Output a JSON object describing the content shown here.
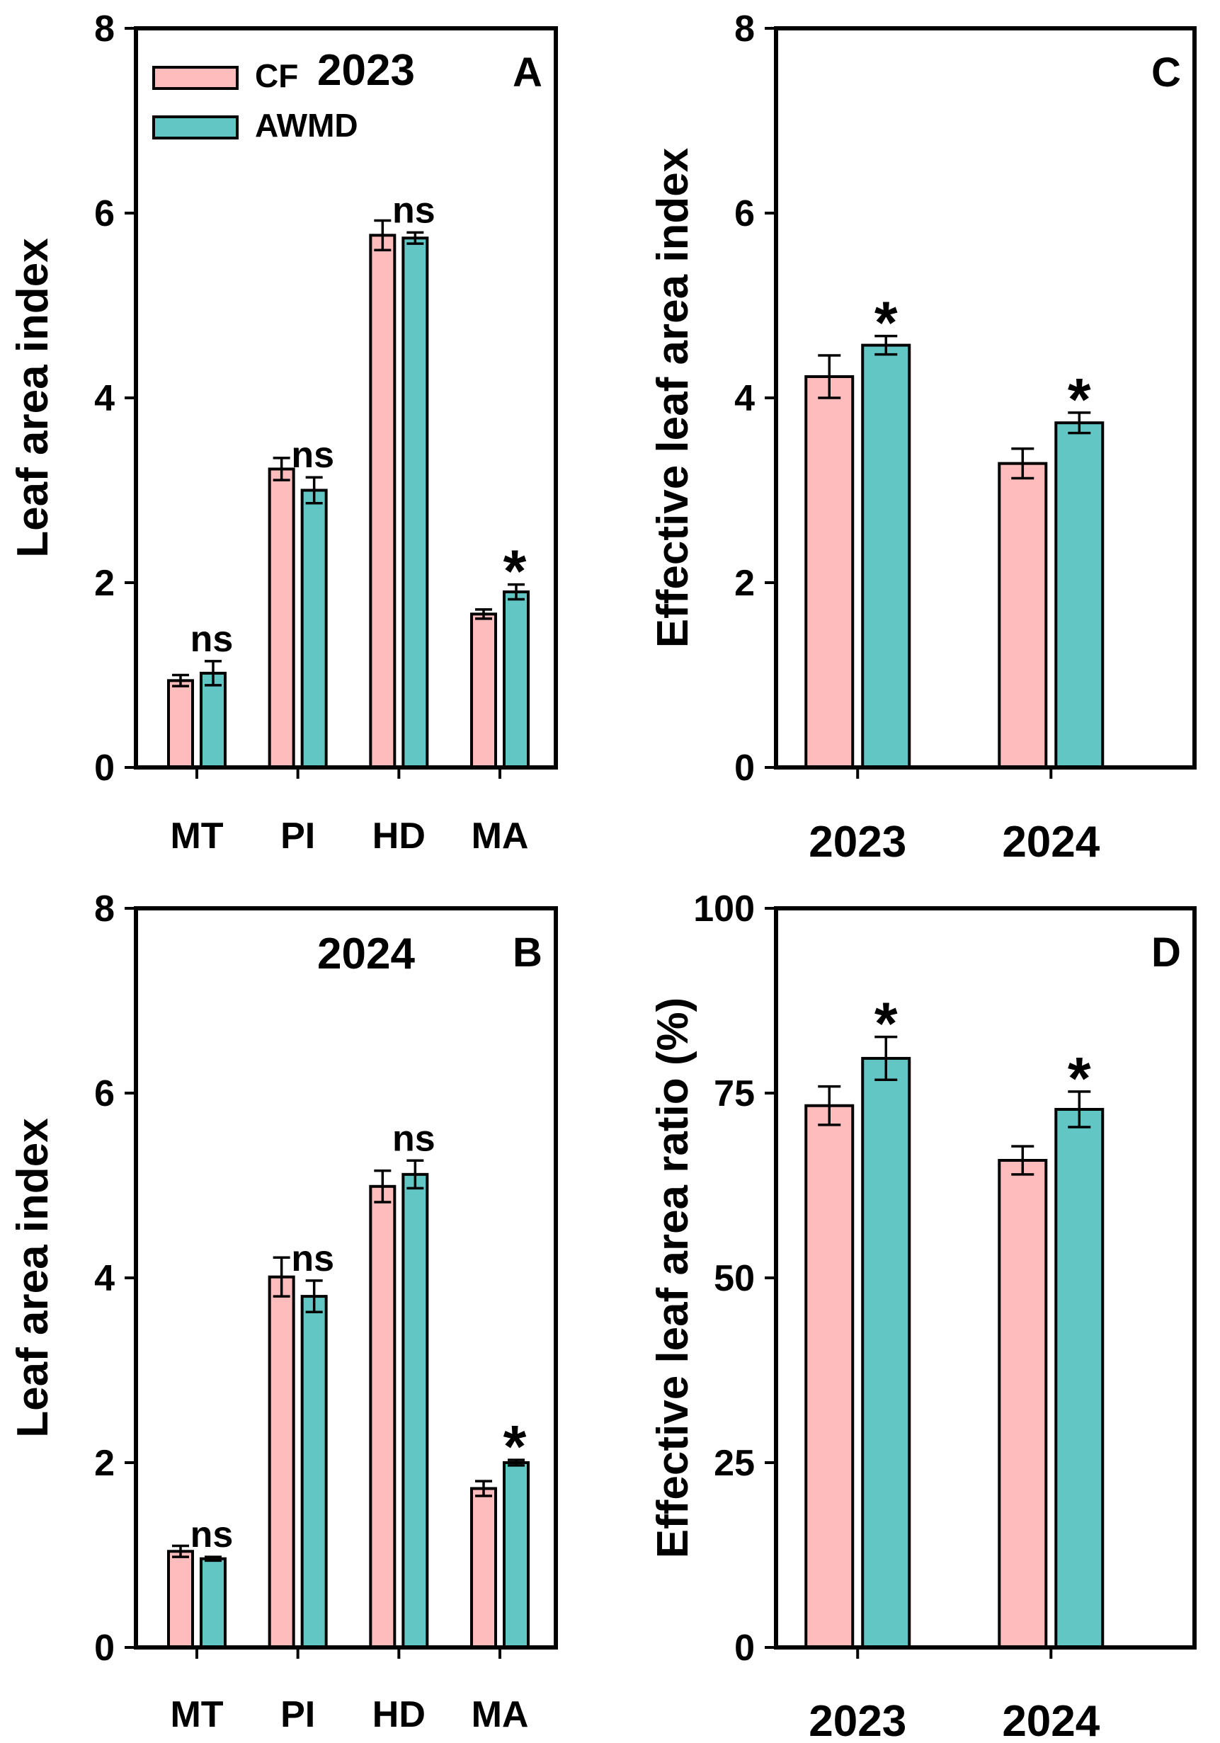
{
  "colors": {
    "cf": "#ffbcbc",
    "awmd": "#62c7c4",
    "stroke": "#000000"
  },
  "legend": [
    {
      "key": "cf",
      "label": "CF"
    },
    {
      "key": "awmd",
      "label": "AWMD"
    }
  ],
  "chart_data": [
    {
      "id": "A",
      "type": "bar",
      "panel_label": "A",
      "year_label": "2023",
      "ylabel": "Leaf area index",
      "ylim": [
        0,
        8
      ],
      "yticks": [
        0,
        2,
        4,
        6,
        8
      ],
      "categories": [
        "MT",
        "PI",
        "HD",
        "MA"
      ],
      "series": [
        {
          "name": "CF",
          "values": [
            0.94,
            3.23,
            5.76,
            1.66
          ],
          "errors": [
            0.06,
            0.12,
            0.16,
            0.05
          ]
        },
        {
          "name": "AWMD",
          "values": [
            1.02,
            3.0,
            5.73,
            1.9
          ],
          "errors": [
            0.13,
            0.14,
            0.06,
            0.08
          ]
        }
      ],
      "significance": [
        "ns",
        "ns",
        "ns",
        "*"
      ],
      "legend": true
    },
    {
      "id": "B",
      "type": "bar",
      "panel_label": "B",
      "year_label": "2024",
      "ylabel": "Leaf area index",
      "ylim": [
        0,
        8
      ],
      "yticks": [
        0,
        2,
        4,
        6,
        8
      ],
      "categories": [
        "MT",
        "PI",
        "HD",
        "MA"
      ],
      "series": [
        {
          "name": "CF",
          "values": [
            1.04,
            4.01,
            4.99,
            1.72
          ],
          "errors": [
            0.06,
            0.21,
            0.17,
            0.08
          ]
        },
        {
          "name": "AWMD",
          "values": [
            0.96,
            3.8,
            5.12,
            2.0
          ],
          "errors": [
            0.02,
            0.17,
            0.15,
            0.03
          ]
        }
      ],
      "significance": [
        "ns",
        "ns",
        "ns",
        "*"
      ],
      "legend": false
    },
    {
      "id": "C",
      "type": "bar",
      "panel_label": "C",
      "year_label": "",
      "ylabel": "Effective leaf area index",
      "ylim": [
        0,
        8
      ],
      "yticks": [
        0,
        2,
        4,
        6,
        8
      ],
      "categories": [
        "2023",
        "2024"
      ],
      "series": [
        {
          "name": "CF",
          "values": [
            4.23,
            3.29
          ],
          "errors": [
            0.23,
            0.16
          ]
        },
        {
          "name": "AWMD",
          "values": [
            4.57,
            3.73
          ],
          "errors": [
            0.1,
            0.11
          ]
        }
      ],
      "significance": [
        "*",
        "*"
      ],
      "legend": false
    },
    {
      "id": "D",
      "type": "bar",
      "panel_label": "D",
      "year_label": "",
      "ylabel": "Effective leaf area ratio (%)",
      "ylim": [
        0,
        100
      ],
      "yticks": [
        0,
        25,
        50,
        75,
        100
      ],
      "categories": [
        "2023",
        "2024"
      ],
      "series": [
        {
          "name": "CF",
          "values": [
            73.3,
            65.9
          ],
          "errors": [
            2.6,
            1.9
          ]
        },
        {
          "name": "AWMD",
          "values": [
            79.7,
            72.8
          ],
          "errors": [
            2.9,
            2.4
          ]
        }
      ],
      "significance": [
        "*",
        "*"
      ],
      "legend": false
    }
  ]
}
